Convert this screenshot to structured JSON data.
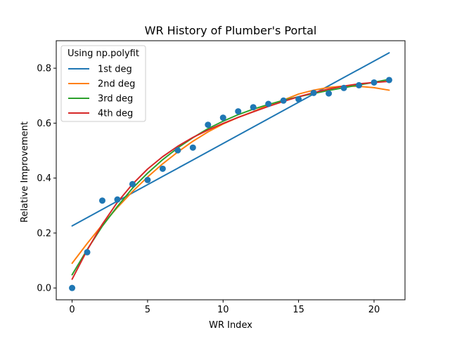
{
  "chart_data": {
    "type": "scatter",
    "title": "WR History of Plumber's Portal",
    "xlabel": "WR Index",
    "ylabel": "Relative Improvement",
    "xlim": [
      -1.05,
      22.05
    ],
    "ylim": [
      -0.043,
      0.9
    ],
    "xticks": [
      0,
      5,
      10,
      15,
      20
    ],
    "yticks": [
      0.0,
      0.2,
      0.4,
      0.6,
      0.8
    ],
    "xtick_labels": [
      "0",
      "5",
      "10",
      "15",
      "20"
    ],
    "ytick_labels": [
      "0.0",
      "0.2",
      "0.4",
      "0.6",
      "0.8"
    ],
    "grid": false,
    "legend": {
      "title": "Using np.polyfit",
      "placement": "top-left"
    },
    "points": {
      "color": "#1f77b4",
      "x": [
        0,
        1,
        2,
        3,
        4,
        5,
        6,
        7,
        8,
        9,
        10,
        11,
        12,
        13,
        14,
        15,
        16,
        17,
        18,
        19,
        20,
        21
      ],
      "y": [
        0.0,
        0.13,
        0.318,
        0.322,
        0.378,
        0.393,
        0.434,
        0.501,
        0.511,
        0.594,
        0.62,
        0.643,
        0.658,
        0.67,
        0.682,
        0.687,
        0.71,
        0.708,
        0.728,
        0.738,
        0.748,
        0.757
      ]
    },
    "series": [
      {
        "name": "1st deg",
        "color": "#1f77b4",
        "x": [
          0,
          1,
          2,
          3,
          4,
          5,
          6,
          7,
          8,
          9,
          10,
          11,
          12,
          13,
          14,
          15,
          16,
          17,
          18,
          19,
          20,
          21
        ],
        "y": [
          0.226,
          0.256,
          0.286,
          0.316,
          0.346,
          0.376,
          0.406,
          0.436,
          0.466,
          0.496,
          0.526,
          0.556,
          0.586,
          0.616,
          0.646,
          0.676,
          0.706,
          0.736,
          0.766,
          0.796,
          0.826,
          0.856
        ]
      },
      {
        "name": "2nd deg",
        "color": "#ff7f0e",
        "x": [
          0,
          1,
          2,
          3,
          4,
          5,
          6,
          7,
          8,
          9,
          10,
          11,
          12,
          13,
          14,
          15,
          16,
          17,
          18,
          19,
          20,
          21
        ],
        "y": [
          0.09,
          0.162,
          0.23,
          0.293,
          0.351,
          0.404,
          0.452,
          0.495,
          0.534,
          0.568,
          0.597,
          0.621,
          0.642,
          0.666,
          0.684,
          0.706,
          0.72,
          0.73,
          0.735,
          0.734,
          0.729,
          0.72
        ]
      },
      {
        "name": "3rd deg",
        "color": "#2ca02c",
        "x": [
          0,
          1,
          2,
          3,
          4,
          5,
          6,
          7,
          8,
          9,
          10,
          11,
          12,
          13,
          14,
          15,
          16,
          17,
          18,
          19,
          20,
          21
        ],
        "y": [
          0.048,
          0.14,
          0.225,
          0.297,
          0.363,
          0.418,
          0.467,
          0.51,
          0.547,
          0.58,
          0.607,
          0.631,
          0.651,
          0.668,
          0.683,
          0.696,
          0.708,
          0.719,
          0.729,
          0.739,
          0.749,
          0.759
        ]
      },
      {
        "name": "4th deg",
        "color": "#d62728",
        "x": [
          0,
          1,
          2,
          3,
          4,
          5,
          6,
          7,
          8,
          9,
          10,
          11,
          12,
          13,
          14,
          15,
          16,
          17,
          18,
          19,
          20,
          21
        ],
        "y": [
          0.032,
          0.138,
          0.232,
          0.312,
          0.378,
          0.433,
          0.478,
          0.516,
          0.548,
          0.575,
          0.599,
          0.621,
          0.641,
          0.661,
          0.679,
          0.696,
          0.711,
          0.724,
          0.735,
          0.743,
          0.748,
          0.752
        ]
      }
    ]
  }
}
